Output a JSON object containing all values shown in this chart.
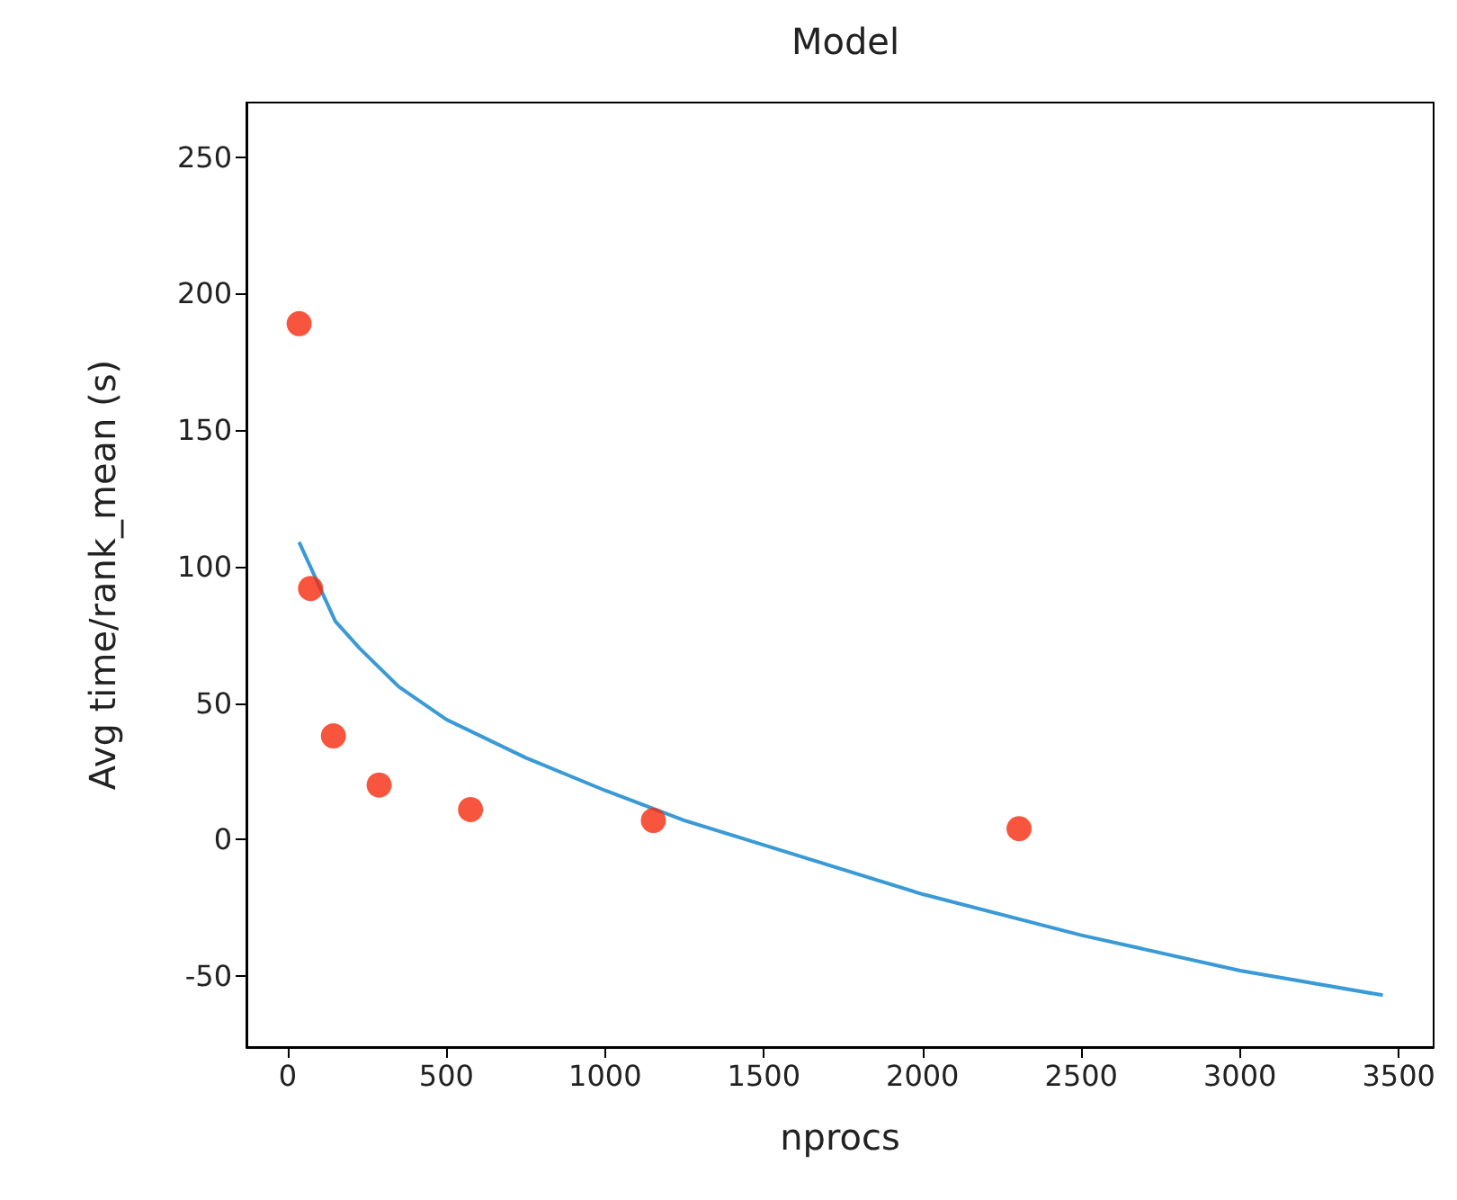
{
  "chart_data": {
    "type": "scatter",
    "title": "Model",
    "xlabel": "nprocs",
    "ylabel": "Avg time/rank_mean (s)",
    "xlim": [
      -130,
      3610
    ],
    "xticks": [
      0,
      500,
      1000,
      1500,
      2000,
      2500,
      3000,
      3500
    ],
    "ylim": [
      -76,
      270
    ],
    "yticks": [
      -50,
      0,
      50,
      100,
      150,
      200,
      250
    ],
    "grid": false,
    "series": [
      {
        "color": "#f52a0c",
        "marker": "circle",
        "x": [
          36,
          72,
          144,
          288,
          576,
          1152,
          2304
        ],
        "values": [
          189,
          92,
          38,
          20,
          11,
          7,
          4
        ]
      },
      {
        "type": "line",
        "color": "#3a9ad6",
        "marker": "none",
        "x": [
          36,
          150,
          227,
          350,
          500,
          750,
          1000,
          1250,
          1500,
          2000,
          2500,
          3000,
          3450
        ],
        "values": [
          109,
          80,
          70,
          56,
          44,
          30,
          18,
          7,
          -2,
          -20,
          -35,
          -48,
          -57
        ]
      }
    ]
  }
}
